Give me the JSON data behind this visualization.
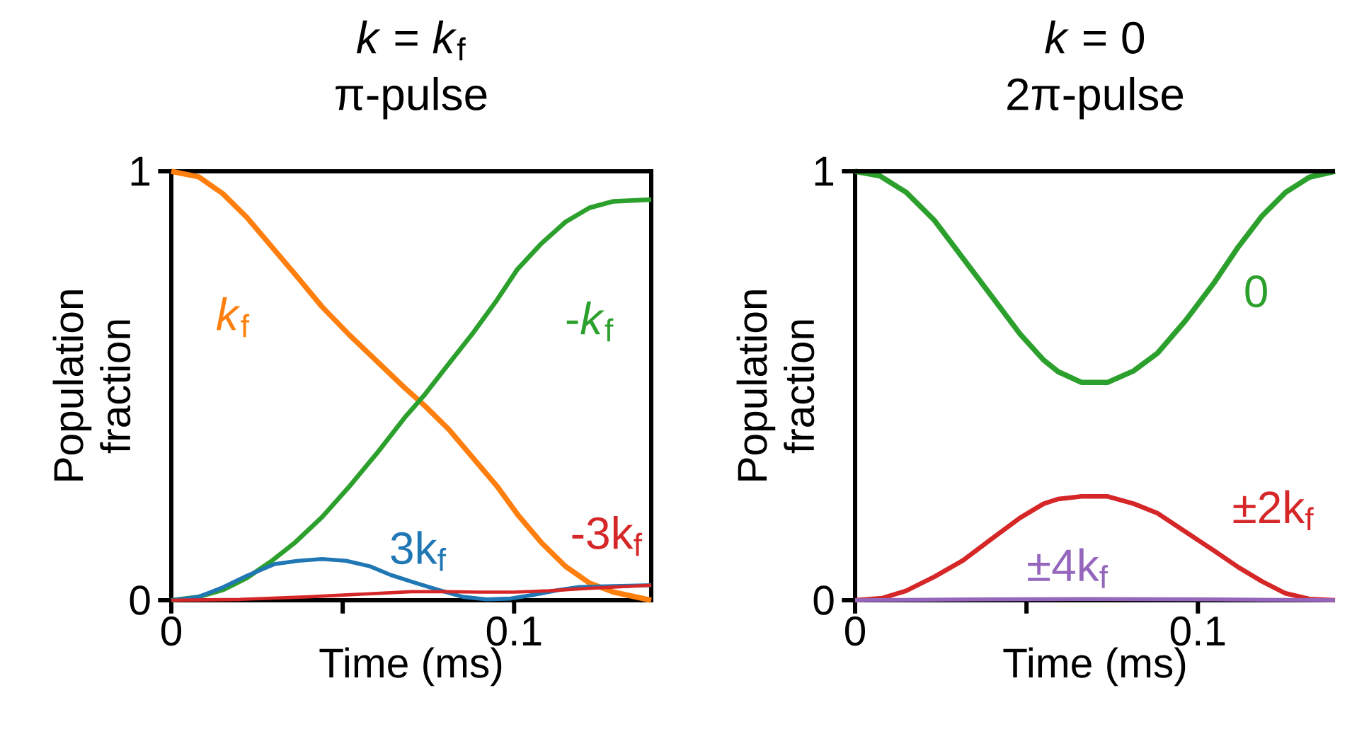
{
  "chart_data": [
    {
      "type": "line",
      "title": "*k* = *k*$_{f}$",
      "subtitle": "π-pulse",
      "xlabel": "Time (ms)",
      "ylabel": "Population fraction",
      "xlim": [
        0,
        0.14
      ],
      "ylim": [
        0,
        1
      ],
      "xticks": [
        0,
        {
          "value": 0.05,
          "label": null
        },
        0.1
      ],
      "yticks": [
        0,
        1
      ],
      "series": [
        {
          "name": "*k*$_{f}$",
          "color": "#ff7f0e",
          "x": [
            0,
            0.008,
            0.015,
            0.022,
            0.029,
            0.036,
            0.044,
            0.052,
            0.06,
            0.068,
            0.074,
            0.081,
            0.088,
            0.095,
            0.101,
            0.108,
            0.115,
            0.122,
            0.129,
            0.14
          ],
          "values": [
            1.0,
            0.987,
            0.948,
            0.893,
            0.827,
            0.761,
            0.684,
            0.618,
            0.557,
            0.496,
            0.453,
            0.398,
            0.332,
            0.266,
            0.2,
            0.134,
            0.079,
            0.04,
            0.019,
            0.0
          ]
        },
        {
          "name": "-*k*$_{f}$",
          "color": "#2ca02c",
          "x": [
            0,
            0.008,
            0.015,
            0.022,
            0.029,
            0.036,
            0.044,
            0.052,
            0.06,
            0.068,
            0.074,
            0.081,
            0.088,
            0.095,
            0.101,
            0.108,
            0.115,
            0.122,
            0.129,
            0.14
          ],
          "values": [
            0.0,
            0.008,
            0.024,
            0.052,
            0.09,
            0.134,
            0.194,
            0.266,
            0.343,
            0.425,
            0.48,
            0.552,
            0.623,
            0.7,
            0.772,
            0.832,
            0.882,
            0.915,
            0.93,
            0.934
          ]
        },
        {
          "name": "3k$_{f}$",
          "color": "#1f77b4",
          "x": [
            0,
            0.008,
            0.015,
            0.022,
            0.03,
            0.037,
            0.044,
            0.051,
            0.058,
            0.064,
            0.071,
            0.078,
            0.085,
            0.092,
            0.099,
            0.106,
            0.113,
            0.119,
            0.129,
            0.14
          ],
          "values": [
            0.0,
            0.008,
            0.03,
            0.057,
            0.084,
            0.092,
            0.096,
            0.092,
            0.079,
            0.059,
            0.041,
            0.024,
            0.008,
            0.002,
            0.004,
            0.013,
            0.024,
            0.031,
            0.033,
            0.035
          ]
        },
        {
          "name": "-3k$_{f}$",
          "color": "#d62728",
          "x": [
            0,
            0.02,
            0.04,
            0.06,
            0.07,
            0.08,
            0.09,
            0.1,
            0.11,
            0.12,
            0.13,
            0.14
          ],
          "values": [
            0.0,
            0.002,
            0.008,
            0.016,
            0.02,
            0.02,
            0.019,
            0.019,
            0.022,
            0.027,
            0.031,
            0.035
          ]
        }
      ]
    },
    {
      "type": "line",
      "title": "*k* = 0",
      "subtitle": "2π-pulse",
      "xlabel": "Time (ms)",
      "ylabel": "Population fraction",
      "xlim": [
        0,
        0.14
      ],
      "ylim": [
        0,
        1
      ],
      "xticks": [
        0,
        {
          "value": 0.05,
          "label": null
        },
        0.1
      ],
      "yticks": [
        0,
        1
      ],
      "ref_lines": [
        {
          "axis": "y",
          "value": 1
        }
      ],
      "series": [
        {
          "name": "0",
          "color": "#2ca02c",
          "x": [
            0,
            0.0073,
            0.0149,
            0.0232,
            0.0315,
            0.0398,
            0.0481,
            0.055,
            0.0592,
            0.066,
            0.0737,
            0.0813,
            0.0882,
            0.0965,
            0.1048,
            0.1118,
            0.1187,
            0.1256,
            0.1325,
            0.14
          ],
          "values": [
            1.0,
            0.989,
            0.951,
            0.885,
            0.797,
            0.709,
            0.621,
            0.56,
            0.533,
            0.508,
            0.508,
            0.535,
            0.576,
            0.653,
            0.741,
            0.824,
            0.896,
            0.951,
            0.986,
            1.0
          ]
        },
        {
          "name": "±2k$_{f}$",
          "color": "#d62728",
          "x": [
            0,
            0.008,
            0.0149,
            0.0232,
            0.0315,
            0.0398,
            0.0481,
            0.055,
            0.0592,
            0.066,
            0.0737,
            0.0813,
            0.0882,
            0.0965,
            0.1048,
            0.1118,
            0.1187,
            0.1256,
            0.1325,
            0.14
          ],
          "values": [
            0.0,
            0.005,
            0.022,
            0.055,
            0.093,
            0.143,
            0.192,
            0.225,
            0.236,
            0.242,
            0.242,
            0.225,
            0.203,
            0.159,
            0.115,
            0.077,
            0.044,
            0.016,
            0.003,
            0.0
          ]
        },
        {
          "name": "±4k$_{f}$",
          "color": "#9467bd",
          "x": [
            0,
            0.035,
            0.07,
            0.105,
            0.14
          ],
          "values": [
            0.0,
            0.002,
            0.003,
            0.002,
            0.0
          ]
        }
      ]
    }
  ]
}
